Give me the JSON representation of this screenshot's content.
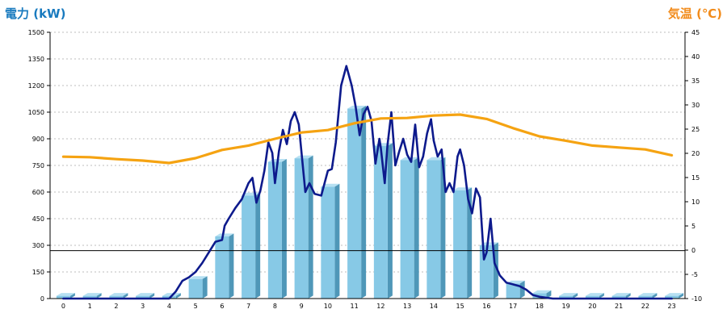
{
  "chart_data": {
    "type": "bar+line",
    "left_axis_title": "電力 (kW)",
    "right_axis_title": "気温 (℃)",
    "x_categories": [
      "0",
      "1",
      "2",
      "3",
      "4",
      "5",
      "6",
      "7",
      "8",
      "9",
      "10",
      "11",
      "12",
      "13",
      "14",
      "15",
      "16",
      "17",
      "18",
      "19",
      "20",
      "21",
      "22",
      "23"
    ],
    "left_ticks": [
      "0",
      "150",
      "300",
      "450",
      "600",
      "750",
      "900",
      "1050",
      "1200",
      "1350",
      "1500"
    ],
    "right_ticks": [
      "-10",
      "-5",
      "0",
      "5",
      "10",
      "15",
      "20",
      "25",
      "30",
      "35",
      "40",
      "45"
    ],
    "ylim_left": [
      0,
      1500
    ],
    "ylim_right": [
      -10,
      45
    ],
    "grid": "dotted horizontal",
    "reference_line_left": 270,
    "series": [
      {
        "kind": "bar",
        "axis": "left",
        "values": [
          15,
          15,
          15,
          15,
          15,
          110,
          350,
          580,
          770,
          790,
          630,
          1070,
          860,
          780,
          780,
          610,
          300,
          85,
          30,
          15,
          15,
          15,
          15,
          15
        ],
        "color": "#87c9e6"
      },
      {
        "kind": "line",
        "axis": "left",
        "color": "#0d1a8c",
        "x": [
          0,
          0.5,
          1,
          1.5,
          2,
          2.5,
          3,
          3.5,
          4,
          4.25,
          4.5,
          4.75,
          5,
          5.25,
          5.5,
          5.75,
          6,
          6.1,
          6.25,
          6.5,
          6.75,
          7,
          7.15,
          7.3,
          7.45,
          7.6,
          7.75,
          7.9,
          8,
          8.15,
          8.3,
          8.45,
          8.6,
          8.75,
          8.9,
          9,
          9.15,
          9.3,
          9.5,
          9.75,
          10,
          10.15,
          10.3,
          10.5,
          10.7,
          10.9,
          11.05,
          11.2,
          11.35,
          11.5,
          11.65,
          11.8,
          11.95,
          12,
          12.15,
          12.25,
          12.4,
          12.55,
          12.7,
          12.85,
          13,
          13.15,
          13.3,
          13.45,
          13.6,
          13.75,
          13.9,
          14,
          14.15,
          14.3,
          14.45,
          14.6,
          14.75,
          14.9,
          15,
          15.15,
          15.3,
          15.45,
          15.6,
          15.75,
          15.9,
          16,
          16.15,
          16.3,
          16.5,
          16.75,
          17,
          17.25,
          17.5,
          17.75,
          18,
          18.5,
          19,
          20,
          21,
          22,
          23
        ],
        "values": [
          0,
          0,
          0,
          0,
          0,
          0,
          0,
          0,
          0,
          40,
          100,
          120,
          150,
          200,
          260,
          320,
          330,
          410,
          450,
          510,
          560,
          650,
          680,
          540,
          610,
          720,
          880,
          820,
          650,
          830,
          950,
          870,
          1000,
          1050,
          980,
          830,
          600,
          650,
          590,
          580,
          720,
          730,
          880,
          1200,
          1310,
          1200,
          1080,
          920,
          1040,
          1080,
          1000,
          760,
          900,
          850,
          650,
          860,
          1050,
          750,
          830,
          900,
          810,
          770,
          980,
          740,
          800,
          930,
          1010,
          890,
          800,
          840,
          600,
          650,
          600,
          800,
          840,
          750,
          560,
          480,
          620,
          570,
          220,
          260,
          450,
          200,
          130,
          90,
          80,
          70,
          50,
          20,
          10,
          0,
          0,
          0,
          0,
          0,
          0
        ]
      },
      {
        "kind": "line",
        "axis": "right",
        "color": "#f5a312",
        "x": [
          0,
          1,
          2,
          3,
          4,
          5,
          6,
          7,
          8,
          9,
          10,
          11,
          12,
          13,
          14,
          15,
          16,
          17,
          18,
          19,
          20,
          21,
          22,
          23
        ],
        "values": [
          19.3,
          19.2,
          18.8,
          18.5,
          18.0,
          19.0,
          20.7,
          21.6,
          23.0,
          24.3,
          24.8,
          26.2,
          27.2,
          27.3,
          27.8,
          28.0,
          27.1,
          25.2,
          23.5,
          22.6,
          21.6,
          21.2,
          20.8,
          19.6
        ]
      }
    ]
  }
}
